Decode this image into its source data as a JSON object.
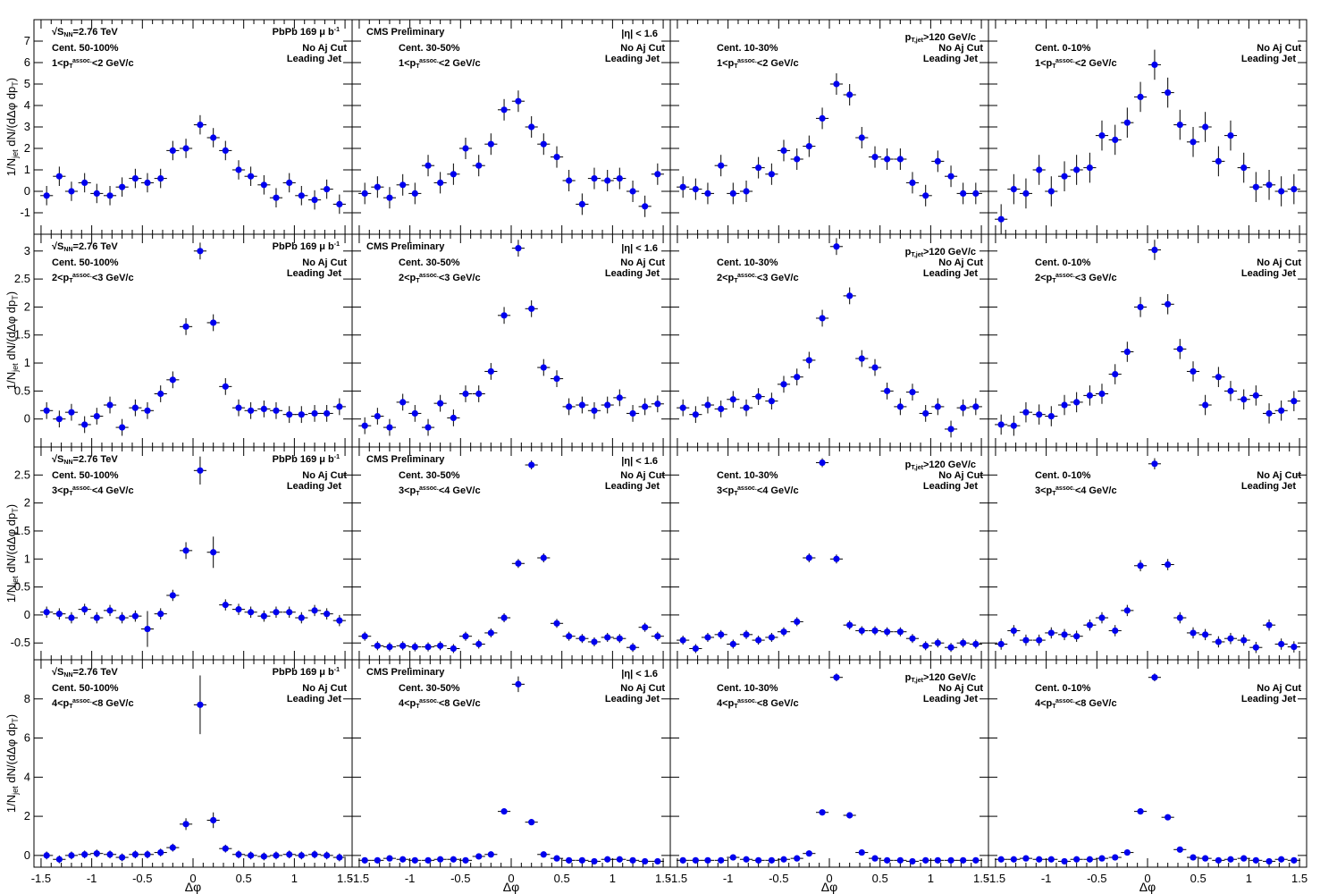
{
  "figure": {
    "xlabel": "Δφ",
    "ylabel": "1/N_jet dN/(dΔφ dp_T)",
    "x_ticks": [
      -1.5,
      -1,
      -0.5,
      0,
      0.5,
      1,
      1.5
    ],
    "panel_texts": {
      "energy": "2.76 TeV",
      "sqrt_s": "S",
      "sqrt_s_sub": "NN",
      "lumi": "PbPb 169  μ b",
      "lumi_sup": "-1",
      "cms": "CMS Preliminary",
      "eta": "|η| < 1.6",
      "ptjet_p": "p",
      "ptjet_sub": "T,jet",
      "ptjet_rest": ">120 GeV/c",
      "noaj": "No Aj Cut",
      "leading": "Leading Jet"
    },
    "centralities": [
      "Cent. 50-100%",
      "Cent. 30-50%",
      "Cent. 10-30%",
      "Cent. 0-10%"
    ],
    "pt_bins": [
      {
        "lo": "1<p",
        "sup": "assoc.",
        "sub": "T",
        "hi": "<2 GeV/c"
      },
      {
        "lo": "2<p",
        "sup": "assoc.",
        "sub": "T",
        "hi": "<3 GeV/c"
      },
      {
        "lo": "3<p",
        "sup": "assoc.",
        "sub": "T",
        "hi": "<4 GeV/c"
      },
      {
        "lo": "4<p",
        "sup": "assoc.",
        "sub": "T",
        "hi": "<8 GeV/c"
      }
    ],
    "colors": {
      "marker": "#0000ee",
      "axis": "#000000"
    }
  },
  "chart_data": {
    "type": "scatter",
    "x": [
      -1.445,
      -1.32,
      -1.2,
      -1.07,
      -0.95,
      -0.82,
      -0.7,
      -0.57,
      -0.45,
      -0.32,
      -0.2,
      -0.07,
      0.07,
      0.2,
      0.32,
      0.45,
      0.57,
      0.7,
      0.82,
      0.95,
      1.07,
      1.2,
      1.32,
      1.445
    ],
    "rows": [
      {
        "pt_bin": "1-2 GeV/c",
        "ylim": [
          -2,
          8
        ],
        "yticks": [
          -1,
          0,
          1,
          2,
          3,
          4,
          5,
          6,
          7
        ],
        "panels": [
          {
            "cent": "50-100%",
            "y": [
              -0.2,
              0.7,
              0.0,
              0.4,
              -0.1,
              -0.2,
              0.2,
              0.6,
              0.4,
              0.6,
              1.9,
              2.0,
              3.1,
              2.5,
              1.9,
              1.0,
              0.7,
              0.3,
              -0.3,
              0.4,
              -0.2,
              -0.4,
              0.1,
              -0.6
            ],
            "err": [
              0.45,
              0.45,
              0.45,
              0.45,
              0.45,
              0.45,
              0.45,
              0.45,
              0.45,
              0.45,
              0.45,
              0.45,
              0.45,
              0.45,
              0.45,
              0.45,
              0.45,
              0.45,
              0.45,
              0.45,
              0.45,
              0.45,
              0.45,
              0.45
            ]
          },
          {
            "cent": "30-50%",
            "y": [
              -0.1,
              0.2,
              -0.3,
              0.3,
              -0.1,
              1.2,
              0.4,
              0.8,
              2.0,
              1.2,
              2.2,
              3.8,
              4.2,
              3.0,
              2.2,
              1.6,
              0.5,
              -0.6,
              0.6,
              0.5,
              0.6,
              0.0,
              -0.7,
              0.8
            ],
            "err": [
              0.5,
              0.5,
              0.5,
              0.5,
              0.5,
              0.5,
              0.5,
              0.5,
              0.5,
              0.5,
              0.5,
              0.5,
              0.5,
              0.5,
              0.5,
              0.5,
              0.5,
              0.5,
              0.5,
              0.5,
              0.5,
              0.5,
              0.5,
              0.5
            ]
          },
          {
            "cent": "10-30%",
            "y": [
              0.2,
              0.1,
              -0.1,
              1.2,
              -0.1,
              0.0,
              1.1,
              0.8,
              1.9,
              1.5,
              2.1,
              3.4,
              5.0,
              4.5,
              2.5,
              1.6,
              1.5,
              1.5,
              0.4,
              -0.2,
              1.4,
              0.7,
              -0.1,
              -0.1
            ],
            "err": [
              0.5,
              0.5,
              0.5,
              0.5,
              0.5,
              0.5,
              0.5,
              0.5,
              0.5,
              0.5,
              0.5,
              0.5,
              0.5,
              0.5,
              0.5,
              0.5,
              0.5,
              0.5,
              0.5,
              0.5,
              0.5,
              0.5,
              0.5,
              0.5
            ]
          },
          {
            "cent": "0-10%",
            "y": [
              -1.3,
              0.1,
              -0.1,
              1.0,
              0.0,
              0.7,
              1.0,
              1.1,
              2.6,
              2.4,
              3.2,
              4.4,
              5.9,
              4.6,
              3.1,
              2.3,
              3.0,
              1.4,
              2.6,
              1.1,
              0.2,
              0.3,
              0.0,
              0.1
            ],
            "err": [
              0.7,
              0.7,
              0.7,
              0.7,
              0.7,
              0.7,
              0.7,
              0.7,
              0.7,
              0.7,
              0.7,
              0.7,
              0.7,
              0.7,
              0.7,
              0.7,
              0.7,
              0.7,
              0.7,
              0.7,
              0.7,
              0.7,
              0.7,
              0.7
            ]
          }
        ]
      },
      {
        "pt_bin": "2-3 GeV/c",
        "ylim": [
          -0.5,
          3.3
        ],
        "yticks": [
          0,
          0.5,
          1,
          1.5,
          2,
          2.5,
          3
        ],
        "panels": [
          {
            "cent": "50-100%",
            "y": [
              0.15,
              0.0,
              0.12,
              -0.1,
              0.05,
              0.25,
              -0.15,
              0.2,
              0.15,
              0.45,
              0.7,
              1.65,
              3.0,
              1.72,
              0.58,
              0.2,
              0.15,
              0.18,
              0.15,
              0.08,
              0.08,
              0.1,
              0.1,
              0.22
            ],
            "err": [
              0.15,
              0.15,
              0.15,
              0.15,
              0.15,
              0.15,
              0.15,
              0.15,
              0.15,
              0.15,
              0.15,
              0.15,
              0.15,
              0.15,
              0.15,
              0.15,
              0.15,
              0.15,
              0.15,
              0.15,
              0.15,
              0.15,
              0.15,
              0.15
            ]
          },
          {
            "cent": "30-50%",
            "y": [
              -0.12,
              0.05,
              -0.15,
              0.3,
              0.1,
              -0.15,
              0.28,
              0.02,
              0.45,
              0.45,
              0.85,
              1.85,
              3.05,
              1.97,
              0.92,
              0.72,
              0.22,
              0.25,
              0.15,
              0.25,
              0.38,
              0.1,
              0.22,
              0.27
            ],
            "err": [
              0.15,
              0.15,
              0.15,
              0.15,
              0.15,
              0.15,
              0.15,
              0.15,
              0.15,
              0.15,
              0.15,
              0.15,
              0.15,
              0.15,
              0.15,
              0.15,
              0.15,
              0.15,
              0.15,
              0.15,
              0.15,
              0.15,
              0.15,
              0.15
            ]
          },
          {
            "cent": "10-30%",
            "y": [
              0.2,
              0.08,
              0.25,
              0.18,
              0.35,
              0.2,
              0.4,
              0.32,
              0.62,
              0.75,
              1.05,
              1.8,
              3.08,
              2.2,
              1.08,
              0.92,
              0.5,
              0.22,
              0.48,
              0.1,
              0.22,
              -0.18,
              0.2,
              0.22
            ],
            "err": [
              0.15,
              0.15,
              0.15,
              0.15,
              0.15,
              0.15,
              0.15,
              0.15,
              0.15,
              0.15,
              0.15,
              0.15,
              0.15,
              0.15,
              0.15,
              0.15,
              0.15,
              0.15,
              0.15,
              0.15,
              0.15,
              0.15,
              0.15,
              0.15
            ]
          },
          {
            "cent": "0-10%",
            "y": [
              -0.1,
              -0.12,
              0.12,
              0.08,
              0.05,
              0.25,
              0.3,
              0.42,
              0.45,
              0.8,
              1.2,
              2.0,
              3.02,
              2.05,
              1.25,
              0.85,
              0.25,
              0.75,
              0.5,
              0.35,
              0.42,
              0.1,
              0.15,
              0.32
            ],
            "err": [
              0.18,
              0.18,
              0.18,
              0.18,
              0.18,
              0.18,
              0.18,
              0.18,
              0.18,
              0.18,
              0.18,
              0.18,
              0.18,
              0.18,
              0.18,
              0.18,
              0.18,
              0.18,
              0.18,
              0.18,
              0.18,
              0.18,
              0.18,
              0.18
            ]
          }
        ]
      },
      {
        "pt_bin": "3-4 GeV/c",
        "ylim": [
          -0.8,
          3.0
        ],
        "yticks": [
          -0.5,
          0,
          0.5,
          1,
          1.5,
          2,
          2.5
        ],
        "panels": [
          {
            "cent": "50-100%",
            "y": [
              0.05,
              0.02,
              -0.05,
              0.1,
              -0.05,
              0.08,
              -0.05,
              -0.02,
              -0.25,
              0.02,
              0.35,
              1.15,
              2.58,
              1.12,
              0.18,
              0.1,
              0.05,
              -0.02,
              0.05,
              0.05,
              -0.05,
              0.08,
              0.02,
              -0.1
            ],
            "err": [
              0.1,
              0.1,
              0.1,
              0.1,
              0.1,
              0.1,
              0.1,
              0.1,
              0.32,
              0.1,
              0.1,
              0.15,
              0.25,
              0.28,
              0.1,
              0.1,
              0.1,
              0.1,
              0.1,
              0.1,
              0.1,
              0.1,
              0.1,
              0.1
            ]
          },
          {
            "cent": "30-50%",
            "y": [
              -0.38,
              -0.55,
              -0.57,
              -0.55,
              -0.57,
              -0.57,
              -0.55,
              -0.6,
              -0.38,
              -0.52,
              -0.32,
              -0.05,
              0.92,
              2.68,
              1.02,
              -0.15,
              -0.38,
              -0.42,
              -0.48,
              -0.4,
              -0.42,
              -0.58,
              -0.22,
              -0.38
            ],
            "err": [
              0.08,
              0.08,
              0.08,
              0.08,
              0.08,
              0.08,
              0.08,
              0.08,
              0.08,
              0.08,
              0.08,
              0.08,
              0.08,
              0.08,
              0.08,
              0.08,
              0.08,
              0.08,
              0.08,
              0.08,
              0.08,
              0.08,
              0.08,
              0.08
            ]
          },
          {
            "cent": "10-30%",
            "y": [
              -0.45,
              -0.6,
              -0.4,
              -0.35,
              -0.52,
              -0.35,
              -0.45,
              -0.4,
              -0.3,
              -0.12,
              1.02,
              2.72,
              1.0,
              -0.18,
              -0.28,
              -0.28,
              -0.3,
              -0.3,
              -0.42,
              -0.55,
              -0.5,
              -0.58,
              -0.5,
              -0.52
            ],
            "err": [
              0.08,
              0.08,
              0.08,
              0.08,
              0.08,
              0.08,
              0.08,
              0.08,
              0.08,
              0.08,
              0.08,
              0.08,
              0.08,
              0.08,
              0.08,
              0.08,
              0.08,
              0.08,
              0.08,
              0.08,
              0.08,
              0.08,
              0.08,
              0.08
            ]
          },
          {
            "cent": "0-10%",
            "y": [
              -0.52,
              -0.28,
              -0.45,
              -0.45,
              -0.32,
              -0.35,
              -0.38,
              -0.18,
              -0.05,
              -0.28,
              0.08,
              0.88,
              2.7,
              0.9,
              -0.05,
              -0.32,
              -0.35,
              -0.48,
              -0.42,
              -0.45,
              -0.58,
              -0.18,
              -0.52,
              -0.57
            ],
            "err": [
              0.1,
              0.1,
              0.1,
              0.1,
              0.1,
              0.1,
              0.1,
              0.1,
              0.1,
              0.1,
              0.1,
              0.1,
              0.1,
              0.1,
              0.1,
              0.1,
              0.1,
              0.1,
              0.1,
              0.1,
              0.1,
              0.1,
              0.1,
              0.1
            ]
          }
        ]
      },
      {
        "pt_bin": "4-8 GeV/c",
        "ylim": [
          -0.6,
          10.0
        ],
        "yticks": [
          0,
          2,
          4,
          6,
          8
        ],
        "panels": [
          {
            "cent": "50-100%",
            "y": [
              0.0,
              -0.2,
              0.0,
              0.05,
              0.1,
              0.05,
              -0.1,
              0.05,
              0.05,
              0.15,
              0.4,
              1.6,
              7.7,
              1.8,
              0.35,
              0.05,
              0.0,
              -0.05,
              0.0,
              0.05,
              0.0,
              0.05,
              0.0,
              -0.1
            ],
            "err": [
              0.2,
              0.2,
              0.2,
              0.2,
              0.2,
              0.2,
              0.2,
              0.2,
              0.2,
              0.2,
              0.2,
              0.3,
              1.5,
              0.4,
              0.2,
              0.2,
              0.2,
              0.2,
              0.2,
              0.2,
              0.2,
              0.2,
              0.2,
              0.2
            ]
          },
          {
            "cent": "30-50%",
            "y": [
              -0.25,
              -0.25,
              -0.15,
              -0.2,
              -0.25,
              -0.25,
              -0.2,
              -0.2,
              -0.25,
              -0.05,
              0.05,
              2.25,
              8.75,
              1.7,
              0.05,
              -0.15,
              -0.25,
              -0.25,
              -0.3,
              -0.2,
              -0.2,
              -0.25,
              -0.3,
              -0.3
            ],
            "err": [
              0.15,
              0.15,
              0.15,
              0.15,
              0.15,
              0.15,
              0.15,
              0.15,
              0.15,
              0.15,
              0.15,
              0.15,
              0.4,
              0.15,
              0.15,
              0.15,
              0.15,
              0.15,
              0.15,
              0.15,
              0.15,
              0.15,
              0.15,
              0.15
            ]
          },
          {
            "cent": "10-30%",
            "y": [
              -0.25,
              -0.25,
              -0.25,
              -0.25,
              -0.1,
              -0.2,
              -0.25,
              -0.25,
              -0.2,
              -0.15,
              0.1,
              2.2,
              9.1,
              2.05,
              0.15,
              -0.15,
              -0.25,
              -0.25,
              -0.3,
              -0.25,
              -0.25,
              -0.25,
              -0.25,
              -0.25
            ],
            "err": [
              0.15,
              0.15,
              0.15,
              0.15,
              0.15,
              0.15,
              0.15,
              0.15,
              0.15,
              0.15,
              0.15,
              0.15,
              0.2,
              0.15,
              0.15,
              0.15,
              0.15,
              0.15,
              0.15,
              0.15,
              0.15,
              0.15,
              0.15,
              0.15
            ]
          },
          {
            "cent": "0-10%",
            "y": [
              -0.2,
              -0.2,
              -0.15,
              -0.2,
              -0.2,
              -0.3,
              -0.2,
              -0.2,
              -0.15,
              -0.1,
              0.15,
              2.25,
              9.1,
              1.95,
              0.3,
              -0.1,
              -0.15,
              -0.25,
              -0.2,
              -0.15,
              -0.25,
              -0.3,
              -0.2,
              -0.25
            ],
            "err": [
              0.15,
              0.15,
              0.15,
              0.15,
              0.15,
              0.15,
              0.15,
              0.15,
              0.15,
              0.15,
              0.15,
              0.15,
              0.2,
              0.15,
              0.15,
              0.15,
              0.15,
              0.15,
              0.15,
              0.15,
              0.15,
              0.15,
              0.15,
              0.15
            ]
          }
        ]
      }
    ]
  }
}
